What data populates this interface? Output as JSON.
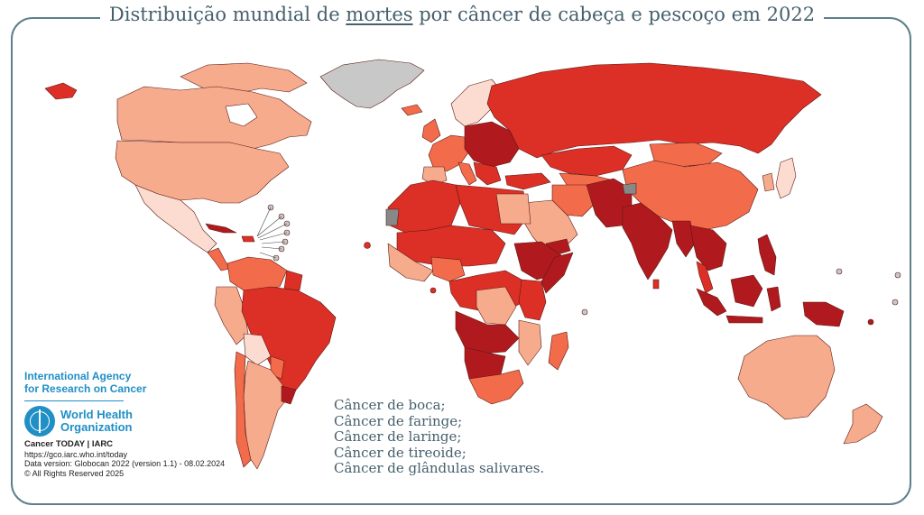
{
  "title": {
    "before": "Distribuição mundial de ",
    "emphasis": "mortes",
    "after": " por câncer de cabeça e pescoço em 2022"
  },
  "legend": {
    "lines": [
      "Câncer de boca;",
      "Câncer de faringe;",
      "Câncer de laringe;",
      "Câncer de tireoide;",
      "Câncer de glândulas salivares."
    ]
  },
  "branding": {
    "iarc_line1": "International Agency",
    "iarc_line2": "for Research on Cancer",
    "who_line1": "World Health",
    "who_line2": "Organization"
  },
  "credits": {
    "product": "Cancer TODAY | IARC",
    "url": "https://gco.iarc.who.int/today",
    "data_version": "Data version: Globocan 2022 (version 1.1) - 08.02.2024",
    "rights": "© All Rights Reserved 2025"
  },
  "colors": {
    "very_light": "#fcdcd0",
    "light": "#f6ab8d",
    "medium": "#f26b4b",
    "high": "#dc2f26",
    "very_high": "#b01a1e",
    "no_data": "#c8c8c8",
    "frame": "#5f7f8c"
  }
}
